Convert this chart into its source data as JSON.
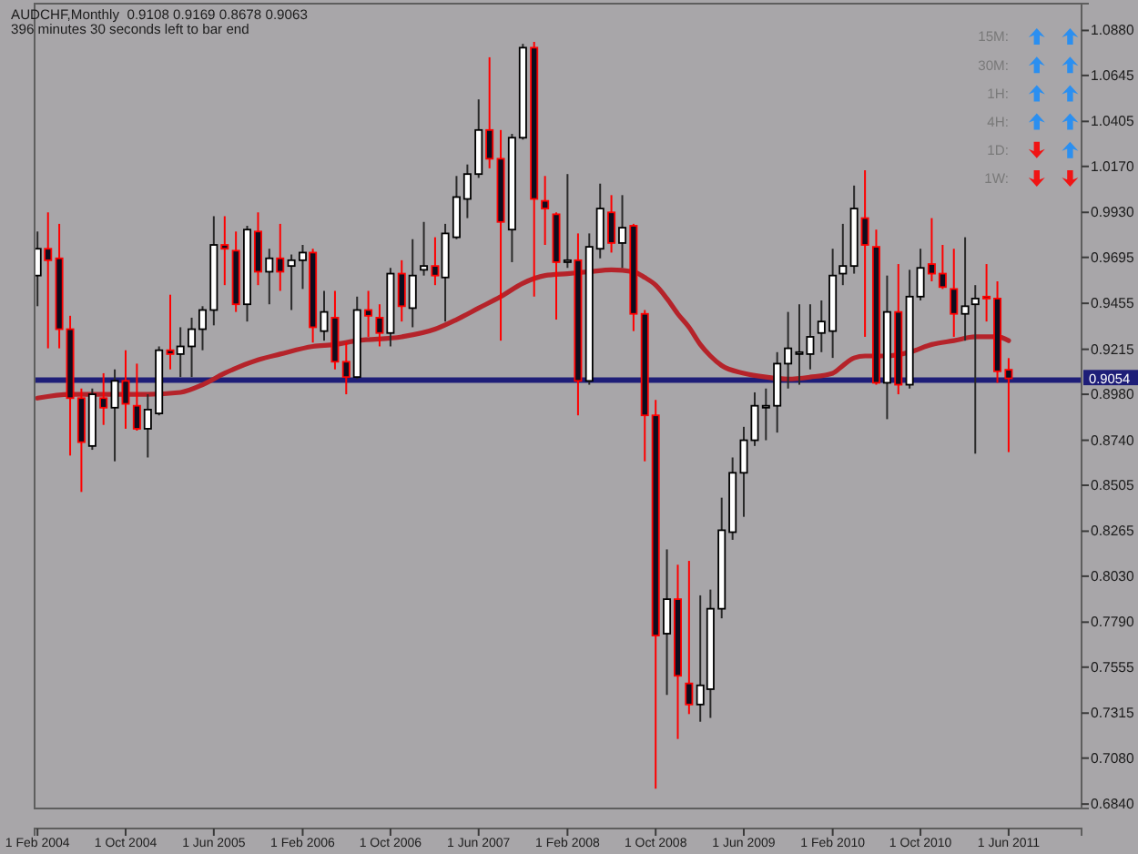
{
  "chart_data": {
    "type": "candlestick",
    "title": "AUDCHF,Monthly  0.9108 0.9169 0.8678 0.9063",
    "subtitle": "396 minutes 30 seconds left to bar end",
    "x": [
      "2004-02",
      "2004-03",
      "2004-04",
      "2004-05",
      "2004-06",
      "2004-07",
      "2004-08",
      "2004-09",
      "2004-10",
      "2004-11",
      "2004-12",
      "2005-01",
      "2005-02",
      "2005-03",
      "2005-04",
      "2005-05",
      "2005-06",
      "2005-07",
      "2005-08",
      "2005-09",
      "2005-10",
      "2005-11",
      "2005-12",
      "2006-01",
      "2006-02",
      "2006-03",
      "2006-04",
      "2006-05",
      "2006-06",
      "2006-07",
      "2006-08",
      "2006-09",
      "2006-10",
      "2006-11",
      "2006-12",
      "2007-01",
      "2007-02",
      "2007-03",
      "2007-04",
      "2007-05",
      "2007-06",
      "2007-07",
      "2007-08",
      "2007-09",
      "2007-10",
      "2007-11",
      "2007-12",
      "2008-01",
      "2008-02",
      "2008-03",
      "2008-04",
      "2008-05",
      "2008-06",
      "2008-07",
      "2008-08",
      "2008-09",
      "2008-10",
      "2008-11",
      "2008-12",
      "2009-01",
      "2009-02",
      "2009-03",
      "2009-04",
      "2009-05",
      "2009-06",
      "2009-07",
      "2009-08",
      "2009-09",
      "2009-10",
      "2009-11",
      "2009-12",
      "2010-01",
      "2010-02",
      "2010-03",
      "2010-04",
      "2010-05",
      "2010-06",
      "2010-07",
      "2010-08",
      "2010-09",
      "2010-10",
      "2010-11",
      "2010-12",
      "2011-01",
      "2011-02",
      "2011-03",
      "2011-04",
      "2011-05",
      "2011-06"
    ],
    "ohlc": [
      [
        0.96,
        0.983,
        0.944,
        0.974
      ],
      [
        0.974,
        0.993,
        0.922,
        0.968
      ],
      [
        0.969,
        0.987,
        0.922,
        0.932
      ],
      [
        0.932,
        0.939,
        0.866,
        0.896
      ],
      [
        0.896,
        0.901,
        0.847,
        0.873
      ],
      [
        0.871,
        0.901,
        0.869,
        0.898
      ],
      [
        0.896,
        0.909,
        0.882,
        0.891
      ],
      [
        0.891,
        0.911,
        0.863,
        0.905
      ],
      [
        0.905,
        0.921,
        0.88,
        0.893
      ],
      [
        0.892,
        0.914,
        0.879,
        0.88
      ],
      [
        0.88,
        0.898,
        0.865,
        0.89
      ],
      [
        0.888,
        0.923,
        0.887,
        0.921
      ],
      [
        0.921,
        0.95,
        0.911,
        0.919
      ],
      [
        0.919,
        0.933,
        0.907,
        0.923
      ],
      [
        0.923,
        0.938,
        0.907,
        0.932
      ],
      [
        0.932,
        0.944,
        0.921,
        0.942
      ],
      [
        0.942,
        0.991,
        0.934,
        0.976
      ],
      [
        0.976,
        0.991,
        0.955,
        0.974
      ],
      [
        0.973,
        0.983,
        0.941,
        0.945
      ],
      [
        0.945,
        0.986,
        0.936,
        0.984
      ],
      [
        0.983,
        0.993,
        0.955,
        0.962
      ],
      [
        0.962,
        0.974,
        0.945,
        0.969
      ],
      [
        0.969,
        0.987,
        0.952,
        0.962
      ],
      [
        0.965,
        0.971,
        0.942,
        0.968
      ],
      [
        0.968,
        0.976,
        0.953,
        0.972
      ],
      [
        0.972,
        0.974,
        0.925,
        0.933
      ],
      [
        0.931,
        0.952,
        0.926,
        0.941
      ],
      [
        0.938,
        0.952,
        0.911,
        0.915
      ],
      [
        0.915,
        0.925,
        0.898,
        0.907
      ],
      [
        0.907,
        0.949,
        0.906,
        0.942
      ],
      [
        0.942,
        0.952,
        0.928,
        0.939
      ],
      [
        0.938,
        0.945,
        0.923,
        0.93
      ],
      [
        0.93,
        0.964,
        0.923,
        0.961
      ],
      [
        0.961,
        0.968,
        0.936,
        0.944
      ],
      [
        0.943,
        0.979,
        0.933,
        0.96
      ],
      [
        0.963,
        0.988,
        0.96,
        0.965
      ],
      [
        0.965,
        0.98,
        0.955,
        0.96
      ],
      [
        0.959,
        0.987,
        0.936,
        0.982
      ],
      [
        0.98,
        1.012,
        0.979,
        1.001
      ],
      [
        1.0,
        1.018,
        0.99,
        1.013
      ],
      [
        1.013,
        1.052,
        1.011,
        1.036
      ],
      [
        1.036,
        1.074,
        1.016,
        1.021
      ],
      [
        1.021,
        1.036,
        0.926,
        0.988
      ],
      [
        0.984,
        1.034,
        0.967,
        1.032
      ],
      [
        1.032,
        1.081,
        1.031,
        1.079
      ],
      [
        1.079,
        1.082,
        0.949,
        1.0
      ],
      [
        0.999,
        1.012,
        0.976,
        0.995
      ],
      [
        0.992,
        0.993,
        0.937,
        0.967
      ],
      [
        0.967,
        1.013,
        0.964,
        0.968
      ],
      [
        0.968,
        0.982,
        0.887,
        0.905
      ],
      [
        0.905,
        0.982,
        0.903,
        0.975
      ],
      [
        0.974,
        1.008,
        0.969,
        0.995
      ],
      [
        0.993,
        1.002,
        0.972,
        0.977
      ],
      [
        0.977,
        1.002,
        0.964,
        0.985
      ],
      [
        0.986,
        0.987,
        0.931,
        0.94
      ],
      [
        0.94,
        0.942,
        0.863,
        0.887
      ],
      [
        0.887,
        0.895,
        0.692,
        0.772
      ],
      [
        0.773,
        0.817,
        0.741,
        0.791
      ],
      [
        0.791,
        0.809,
        0.718,
        0.751
      ],
      [
        0.747,
        0.811,
        0.731,
        0.736
      ],
      [
        0.736,
        0.793,
        0.727,
        0.746
      ],
      [
        0.744,
        0.796,
        0.729,
        0.786
      ],
      [
        0.786,
        0.844,
        0.781,
        0.827
      ],
      [
        0.826,
        0.865,
        0.822,
        0.857
      ],
      [
        0.857,
        0.881,
        0.834,
        0.874
      ],
      [
        0.874,
        0.899,
        0.871,
        0.892
      ],
      [
        0.891,
        0.901,
        0.874,
        0.892
      ],
      [
        0.892,
        0.92,
        0.878,
        0.914
      ],
      [
        0.914,
        0.941,
        0.901,
        0.922
      ],
      [
        0.919,
        0.945,
        0.903,
        0.92
      ],
      [
        0.919,
        0.945,
        0.911,
        0.928
      ],
      [
        0.93,
        0.947,
        0.92,
        0.936
      ],
      [
        0.931,
        0.974,
        0.917,
        0.96
      ],
      [
        0.961,
        0.987,
        0.955,
        0.965
      ],
      [
        0.965,
        1.007,
        0.961,
        0.995
      ],
      [
        0.99,
        1.015,
        0.928,
        0.976
      ],
      [
        0.975,
        0.984,
        0.903,
        0.904
      ],
      [
        0.904,
        0.96,
        0.885,
        0.941
      ],
      [
        0.941,
        0.966,
        0.898,
        0.903
      ],
      [
        0.903,
        0.963,
        0.901,
        0.949
      ],
      [
        0.949,
        0.974,
        0.947,
        0.964
      ],
      [
        0.966,
        0.99,
        0.957,
        0.961
      ],
      [
        0.961,
        0.976,
        0.953,
        0.954
      ],
      [
        0.953,
        0.974,
        0.928,
        0.94
      ],
      [
        0.94,
        0.98,
        0.926,
        0.944
      ],
      [
        0.945,
        0.955,
        0.867,
        0.948
      ],
      [
        0.949,
        0.966,
        0.936,
        0.948
      ],
      [
        0.948,
        0.957,
        0.904,
        0.91
      ],
      [
        0.9108,
        0.9169,
        0.8678,
        0.9063
      ]
    ],
    "series": [
      {
        "type": "line",
        "color": "#b5232a",
        "x": [
          "2004-02",
          "2004-05",
          "2004-08",
          "2004-12",
          "2005-03",
          "2005-05",
          "2005-07",
          "2005-10",
          "2005-12",
          "2006-03",
          "2006-05",
          "2006-07",
          "2006-11",
          "2007-02",
          "2007-04",
          "2007-06",
          "2007-08",
          "2007-10",
          "2007-12",
          "2008-02",
          "2008-04",
          "2008-06",
          "2008-08",
          "2008-09",
          "2008-10",
          "2008-11",
          "2008-12",
          "2009-01",
          "2009-02",
          "2009-03",
          "2009-04",
          "2009-06",
          "2009-08",
          "2009-10",
          "2009-12",
          "2010-02",
          "2010-03",
          "2010-04",
          "2010-05",
          "2010-07",
          "2010-09",
          "2010-11",
          "2011-01",
          "2011-03",
          "2011-05",
          "2011-06"
        ],
        "values": [
          0.896,
          0.898,
          0.898,
          0.898,
          0.899,
          0.903,
          0.909,
          0.916,
          0.919,
          0.923,
          0.924,
          0.926,
          0.928,
          0.932,
          0.937,
          0.943,
          0.949,
          0.956,
          0.96,
          0.961,
          0.962,
          0.963,
          0.962,
          0.959,
          0.955,
          0.948,
          0.94,
          0.933,
          0.924,
          0.918,
          0.913,
          0.909,
          0.907,
          0.906,
          0.907,
          0.909,
          0.913,
          0.917,
          0.918,
          0.918,
          0.92,
          0.924,
          0.926,
          0.928,
          0.928,
          0.926
        ]
      }
    ],
    "xlim": [
      "2004-01-24",
      "2011-12-19"
    ],
    "xticks": [
      {
        "value": "2004-02",
        "label": "1 Feb 2004"
      },
      {
        "value": "2004-10",
        "label": "1 Oct 2004"
      },
      {
        "value": "2005-06",
        "label": "1 Jun 2005"
      },
      {
        "value": "2006-02",
        "label": "1 Feb 2006"
      },
      {
        "value": "2006-10",
        "label": "1 Oct 2006"
      },
      {
        "value": "2007-06",
        "label": "1 Jun 2007"
      },
      {
        "value": "2008-02",
        "label": "1 Feb 2008"
      },
      {
        "value": "2008-10",
        "label": "1 Oct 2008"
      },
      {
        "value": "2009-06",
        "label": "1 Jun 2009"
      },
      {
        "value": "2010-02",
        "label": "1 Feb 2010"
      },
      {
        "value": "2010-10",
        "label": "1 Oct 2010"
      },
      {
        "value": "2011-06",
        "label": "1 Jun 2011"
      }
    ],
    "ylim": [
      0.6817,
      1.102
    ],
    "yticks": [
      {
        "value": 1.088,
        "label": "1.0880"
      },
      {
        "value": 1.0645,
        "label": "1.0645"
      },
      {
        "value": 1.0405,
        "label": "1.0405"
      },
      {
        "value": 1.017,
        "label": "1.0170"
      },
      {
        "value": 0.993,
        "label": "0.9930"
      },
      {
        "value": 0.9695,
        "label": "0.9695"
      },
      {
        "value": 0.9455,
        "label": "0.9455"
      },
      {
        "value": 0.9215,
        "label": "0.9215"
      },
      {
        "value": 0.898,
        "label": "0.8980"
      },
      {
        "value": 0.874,
        "label": "0.8740"
      },
      {
        "value": 0.8505,
        "label": "0.8505"
      },
      {
        "value": 0.8265,
        "label": "0.8265"
      },
      {
        "value": 0.803,
        "label": "0.8030"
      },
      {
        "value": 0.779,
        "label": "0.7790"
      },
      {
        "value": 0.7555,
        "label": "0.7555"
      },
      {
        "value": 0.7315,
        "label": "0.7315"
      },
      {
        "value": 0.708,
        "label": "0.7080"
      },
      {
        "value": 0.684,
        "label": "0.6840"
      }
    ],
    "ref_lines": [
      {
        "axis": "y",
        "value": 0.9054,
        "label": "0.9054",
        "color": "#1e1e78"
      }
    ],
    "annotations": [
      "15M:",
      "30M:",
      "1H:",
      "4H:",
      "1D:",
      "1W:"
    ]
  }
}
